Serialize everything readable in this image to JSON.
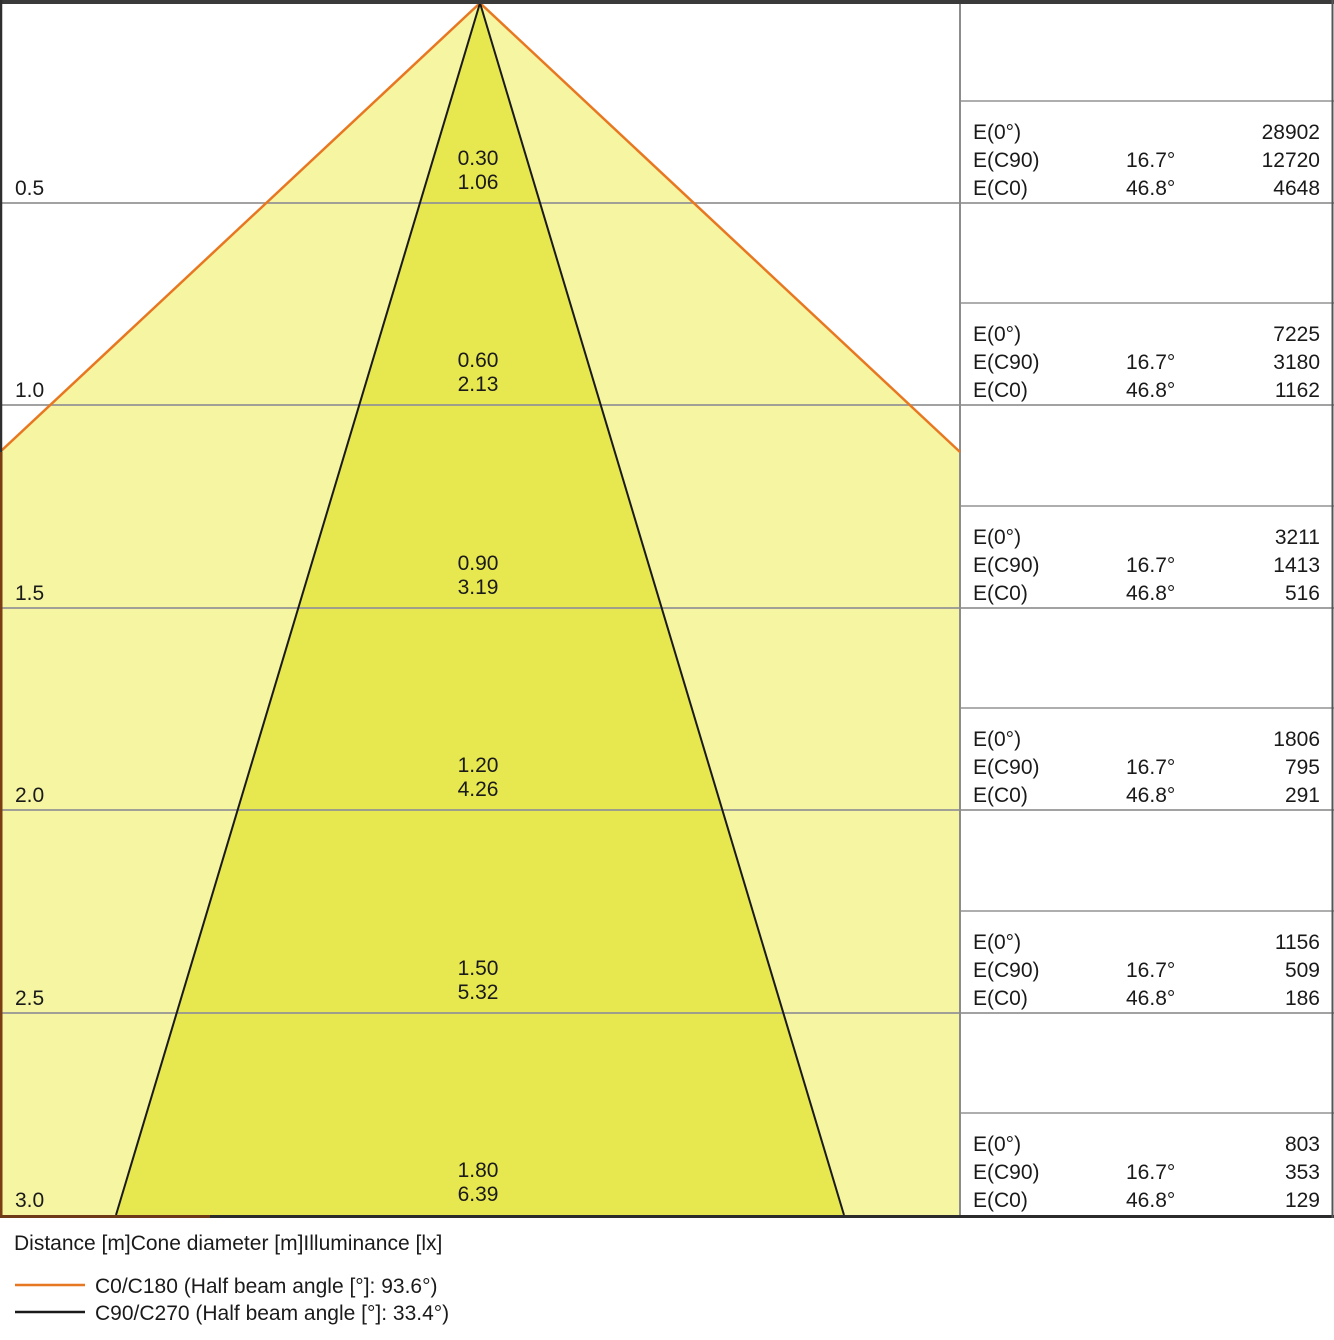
{
  "colors": {
    "cone_wide_fill": "#f5f5a2",
    "cone_narrow_fill": "#e7e74f",
    "c0_c180_line": "#e87722",
    "c90_c270_line": "#1a1a1a",
    "grid_line": "#949494",
    "border": "#3a3a3a",
    "border_orange_overlap": "#7a3c12",
    "text": "#1a1a1a"
  },
  "labels": {
    "e0": "E(0°)",
    "ec90": "E(C90)",
    "ec0": "E(C0)"
  },
  "chart_data": {
    "type": "table",
    "title": "Light cone diagram: distance, cone diameter and illuminance",
    "axis_caption": "Distance [m]Cone diameter [m]Illuminance [lx]",
    "angle_c90_half": "16.7°",
    "angle_c0_half": "46.8°",
    "half_beam_angle_c0_c180_deg": 93.6,
    "half_beam_angle_c90_c270_deg": 33.4,
    "columns": [
      "Distance [m]",
      "Cone diameter C90/C270 [m]",
      "Cone diameter C0/C180 [m]",
      "E(0°) [lx]",
      "E(C90) [lx]",
      "E(C0) [lx]"
    ],
    "rows": [
      {
        "distance_m": "0.5",
        "cone_diameter_c90_m": "0.30",
        "cone_diameter_c0_m": "1.06",
        "e0_lx": "28902",
        "ec90_lx": "12720",
        "ec0_lx": "4648"
      },
      {
        "distance_m": "1.0",
        "cone_diameter_c90_m": "0.60",
        "cone_diameter_c0_m": "2.13",
        "e0_lx": "7225",
        "ec90_lx": "3180",
        "ec0_lx": "1162"
      },
      {
        "distance_m": "1.5",
        "cone_diameter_c90_m": "0.90",
        "cone_diameter_c0_m": "3.19",
        "e0_lx": "3211",
        "ec90_lx": "1413",
        "ec0_lx": "516"
      },
      {
        "distance_m": "2.0",
        "cone_diameter_c90_m": "1.20",
        "cone_diameter_c0_m": "4.26",
        "e0_lx": "1806",
        "ec90_lx": "795",
        "ec0_lx": "291"
      },
      {
        "distance_m": "2.5",
        "cone_diameter_c90_m": "1.50",
        "cone_diameter_c0_m": "5.32",
        "e0_lx": "1156",
        "ec90_lx": "509",
        "ec0_lx": "186"
      },
      {
        "distance_m": "3.0",
        "cone_diameter_c90_m": "1.80",
        "cone_diameter_c0_m": "6.39",
        "e0_lx": "803",
        "ec90_lx": "353",
        "ec0_lx": "129"
      }
    ],
    "legend": [
      {
        "name": "C0/C180",
        "label": "C0/C180 (Half beam angle [°]: 93.6°)",
        "color": "#e87722"
      },
      {
        "name": "C90/C270",
        "label": "C90/C270 (Half beam angle [°]: 33.4°)",
        "color": "#1a1a1a"
      }
    ],
    "legend_position": "bottom-left",
    "grid": true,
    "y_axis_ticks_m": [
      0.5,
      1.0,
      1.5,
      2.0,
      2.5,
      3.0
    ]
  }
}
